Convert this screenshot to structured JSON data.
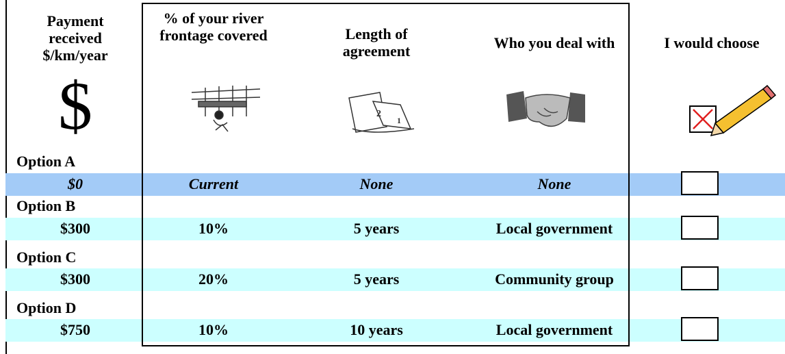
{
  "header": {
    "columns": [
      "Payment received $/km/year",
      "% of your river frontage covered",
      "Length of agreement",
      "Who you deal with",
      "I would choose"
    ],
    "symbol": "$"
  },
  "options": [
    {
      "label": "Option A",
      "values": [
        "$0",
        "Current",
        "None",
        "None"
      ]
    },
    {
      "label": "Option B",
      "values": [
        "$300",
        "10%",
        "5 years",
        "Local government"
      ]
    },
    {
      "label": "Option C",
      "values": [
        "$300",
        "20%",
        "5 years",
        "Community group"
      ]
    },
    {
      "label": "Option D",
      "values": [
        "$750",
        "10%",
        "10 years",
        "Local government"
      ]
    }
  ]
}
